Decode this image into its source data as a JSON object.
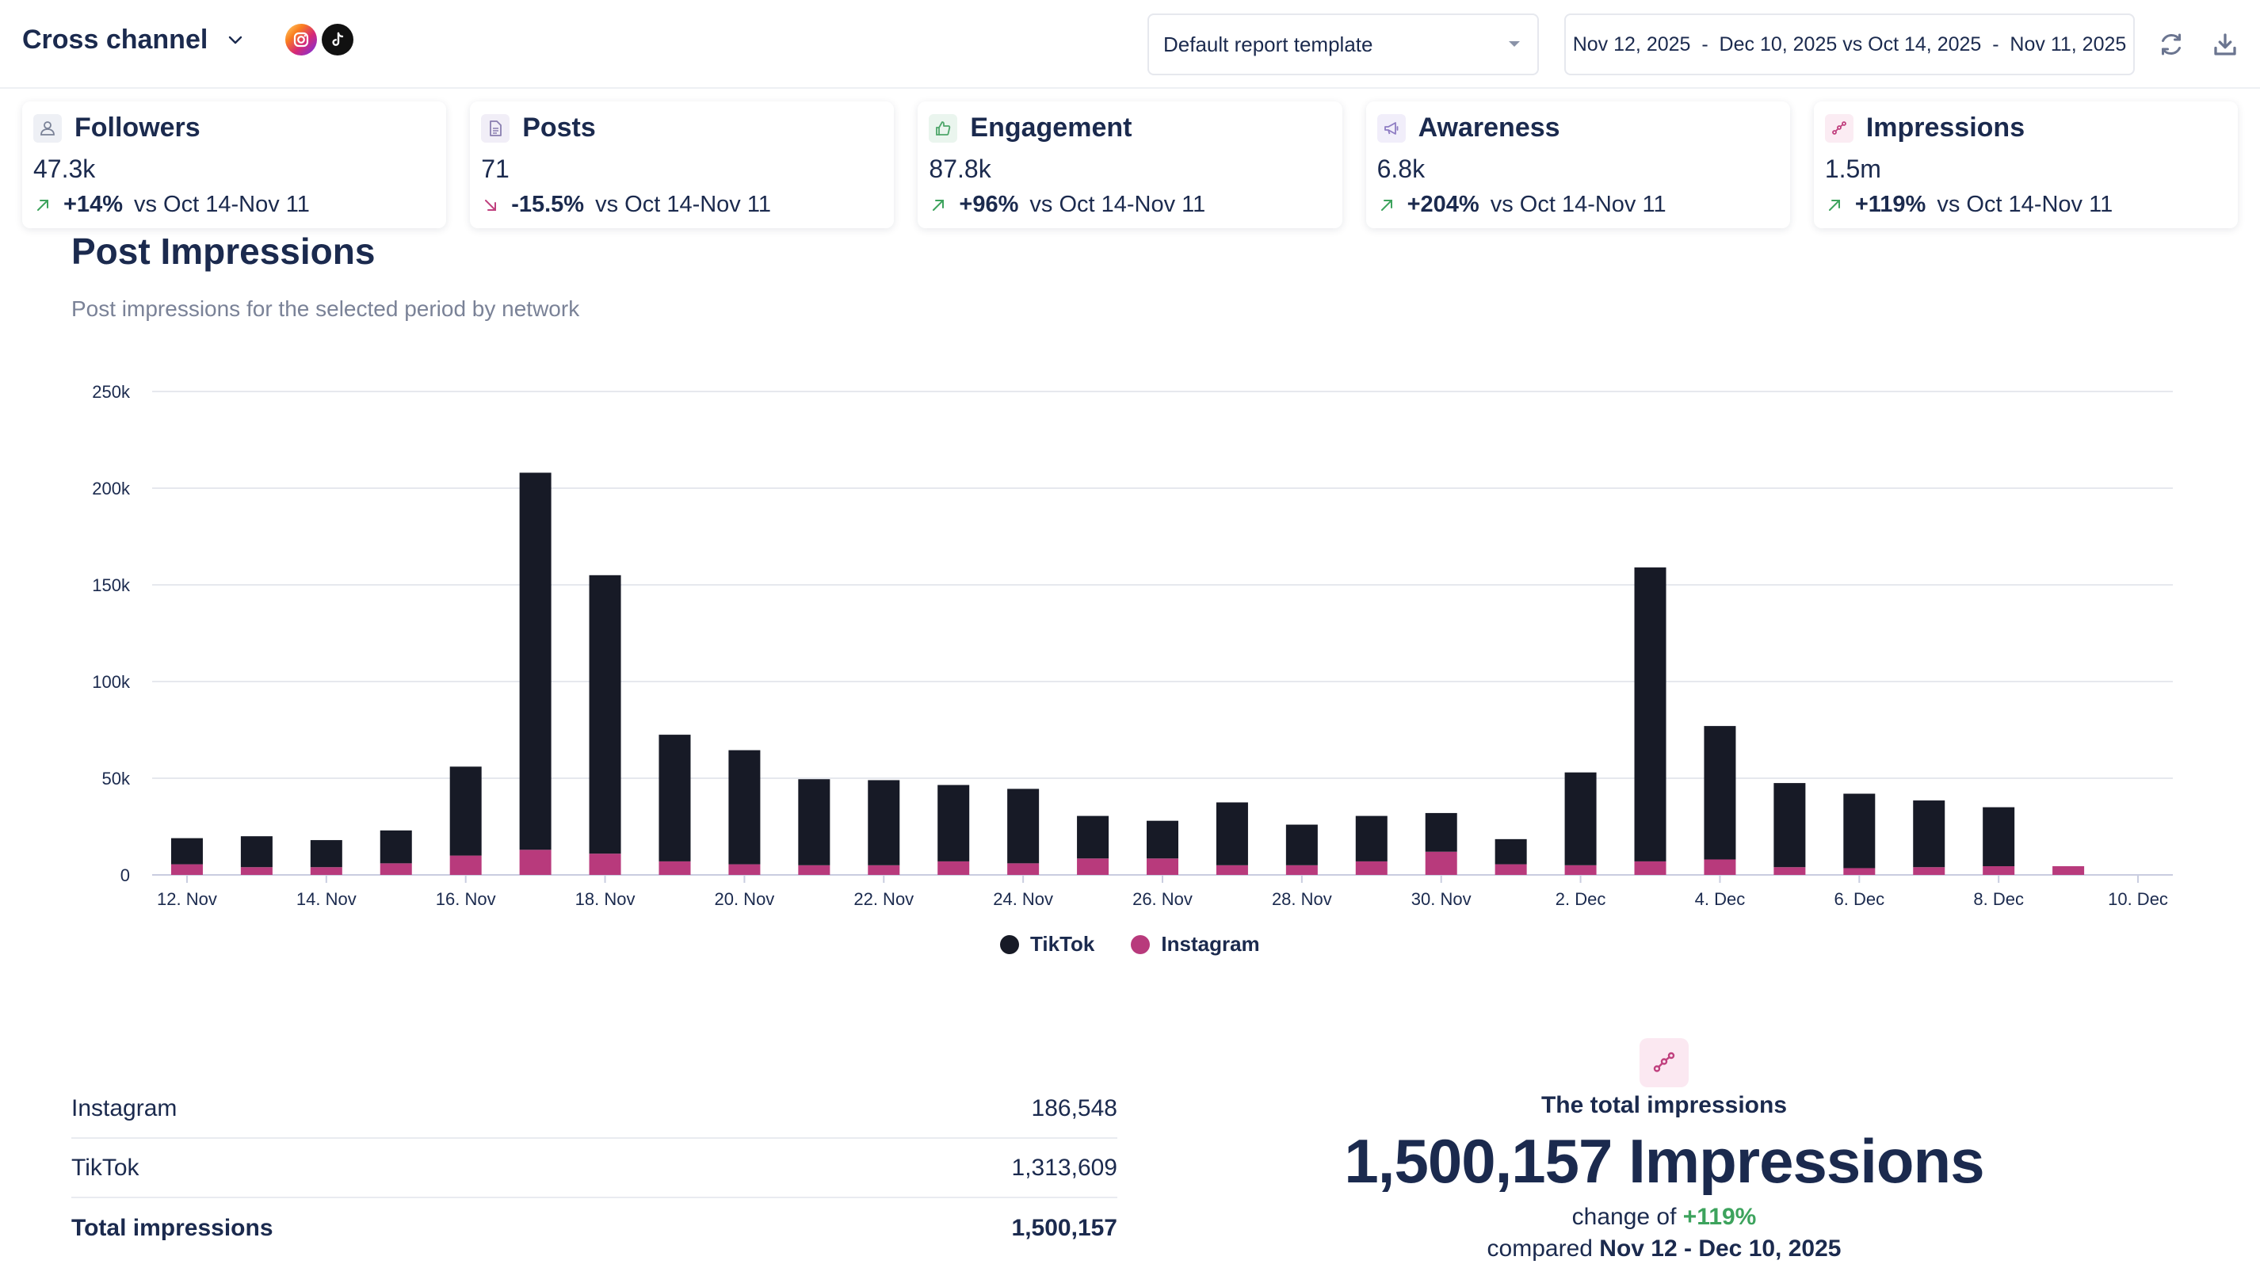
{
  "header": {
    "title": "Cross channel",
    "networks": [
      "instagram-icon",
      "tiktok-icon"
    ],
    "template_select": "Default report template",
    "date_range": "Nov 12, 2025  -  Dec 10, 2025 vs Oct 14, 2025  -  Nov 11, 2025"
  },
  "kpis": [
    {
      "title": "Followers",
      "value": "47.3k",
      "change": "+14%",
      "direction": "up",
      "compare": "vs Oct 14-Nov 11",
      "icon": "user-icon",
      "icon_bg": "#eef0f5",
      "icon_color": "#7a8297"
    },
    {
      "title": "Posts",
      "value": "71",
      "change": "-15.5%",
      "direction": "down",
      "compare": "vs Oct 14-Nov 11",
      "icon": "document-icon",
      "icon_bg": "#f1eef7",
      "icon_color": "#8a7fb0"
    },
    {
      "title": "Engagement",
      "value": "87.8k",
      "change": "+96%",
      "direction": "up",
      "compare": "vs Oct 14-Nov 11",
      "icon": "thumbs-up-icon",
      "icon_bg": "#eaf5ee",
      "icon_color": "#4ea66a"
    },
    {
      "title": "Awareness",
      "value": "6.8k",
      "change": "+204%",
      "direction": "up",
      "compare": "vs Oct 14-Nov 11",
      "icon": "megaphone-icon",
      "icon_bg": "#f1eefa",
      "icon_color": "#8e7cc3"
    },
    {
      "title": "Impressions",
      "value": "1.5m",
      "change": "+119%",
      "direction": "up",
      "compare": "vs Oct 14-Nov 11",
      "icon": "impressions-icon",
      "icon_bg": "#fbecf3",
      "icon_color": "#c0407e"
    }
  ],
  "section": {
    "title": "Post Impressions",
    "subtitle": "Post impressions for the selected period by network"
  },
  "colors": {
    "tiktok": "#171a26",
    "instagram": "#b83a7c",
    "up": "#3da35d",
    "down": "#c0407e"
  },
  "chart_data": {
    "type": "bar",
    "stacked": true,
    "categories": [
      "12. Nov",
      "13. Nov",
      "14. Nov",
      "15. Nov",
      "16. Nov",
      "17. Nov",
      "18. Nov",
      "19. Nov",
      "20. Nov",
      "21. Nov",
      "22. Nov",
      "23. Nov",
      "24. Nov",
      "25. Nov",
      "26. Nov",
      "27. Nov",
      "28. Nov",
      "29. Nov",
      "30. Nov",
      "1. Dec",
      "2. Dec",
      "3. Dec",
      "4. Dec",
      "5. Dec",
      "6. Dec",
      "7. Dec",
      "8. Dec",
      "9. Dec",
      "10. Dec"
    ],
    "x_tick_labels": [
      "12. Nov",
      "14. Nov",
      "16. Nov",
      "18. Nov",
      "20. Nov",
      "22. Nov",
      "24. Nov",
      "26. Nov",
      "28. Nov",
      "30. Nov",
      "2. Dec",
      "4. Dec",
      "6. Dec",
      "8. Dec",
      "10. Dec"
    ],
    "series": [
      {
        "name": "Instagram",
        "values": [
          5500,
          4000,
          4000,
          6000,
          10000,
          13000,
          11000,
          7000,
          5500,
          5000,
          5000,
          7000,
          6000,
          8500,
          8500,
          5000,
          5000,
          7000,
          12000,
          5500,
          5000,
          7000,
          8000,
          4000,
          3500,
          4000,
          4500,
          4500,
          0
        ]
      },
      {
        "name": "TikTok",
        "values": [
          13500,
          16000,
          14000,
          17000,
          46000,
          195000,
          144000,
          65500,
          59000,
          44500,
          44000,
          39500,
          38500,
          22000,
          19500,
          32500,
          21000,
          23500,
          20000,
          13000,
          48000,
          152000,
          69000,
          43500,
          38500,
          34500,
          30500,
          0,
          0
        ]
      }
    ],
    "y_ticks": [
      "0",
      "50k",
      "100k",
      "150k",
      "200k",
      "250k"
    ],
    "ylim": [
      0,
      250000
    ],
    "grid": true,
    "legend_position": "bottom-center"
  },
  "legend": {
    "tiktok": "TikTok",
    "instagram": "Instagram"
  },
  "table": {
    "rows": [
      {
        "label": "Instagram",
        "value": "186,548"
      },
      {
        "label": "TikTok",
        "value": "1,313,609"
      },
      {
        "label": "Total impressions",
        "value": "1,500,157"
      }
    ]
  },
  "summary": {
    "label": "The total impressions",
    "big": "1,500,157 Impressions",
    "change_prefix": "change of",
    "change": "+119%",
    "compare_prefix": "compared",
    "compare_range": "Nov 12 - Dec 10, 2025"
  }
}
